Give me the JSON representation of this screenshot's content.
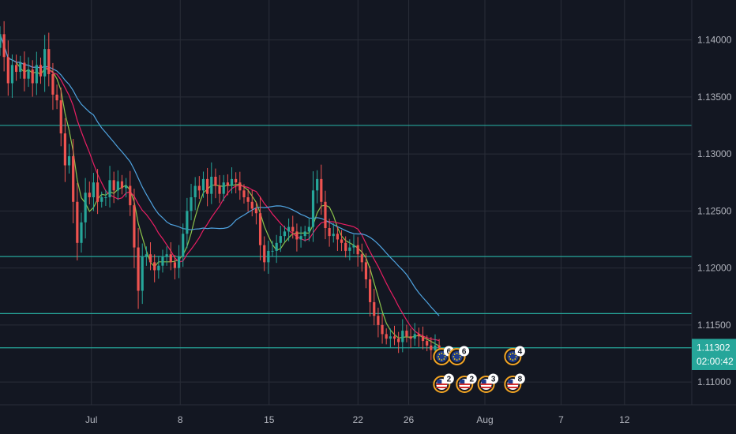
{
  "chart_data": {
    "type": "candlestick",
    "y_ticks": [
      "1.14000",
      "1.13500",
      "1.13000",
      "1.12500",
      "1.12000",
      "1.11500",
      "1.11000"
    ],
    "ylim": [
      1.108,
      1.1435
    ],
    "x_ticks": [
      {
        "label": "Jul",
        "day": 1
      },
      {
        "label": "8",
        "day": 8
      },
      {
        "label": "15",
        "day": 15
      },
      {
        "label": "22",
        "day": 22
      },
      {
        "label": "26",
        "day": 26
      },
      {
        "label": "Aug",
        "day": 32
      },
      {
        "label": "7",
        "day": 38
      },
      {
        "label": "12",
        "day": 43
      }
    ],
    "xlim_days": [
      -6.2,
      48.3
    ],
    "last_price": "1.11302",
    "countdown": "02:00:42",
    "horizontal_levels": [
      1.1325,
      1.121,
      1.116,
      1.113
    ],
    "closes": [
      1.1405,
      1.1385,
      1.1362,
      1.1378,
      1.1372,
      1.138,
      1.1366,
      1.1374,
      1.1362,
      1.1378,
      1.1368,
      1.1392,
      1.137,
      1.1352,
      1.1347,
      1.1318,
      1.129,
      1.1298,
      1.1258,
      1.1222,
      1.124,
      1.1266,
      1.1262,
      1.1275,
      1.1258,
      1.1262,
      1.1262,
      1.1277,
      1.1268,
      1.1276,
      1.127,
      1.1272,
      1.1255,
      1.1218,
      1.118,
      1.121,
      1.1212,
      1.1205,
      1.1198,
      1.1202,
      1.121,
      1.1212,
      1.1205,
      1.12,
      1.121,
      1.123,
      1.125,
      1.1262,
      1.1272,
      1.1268,
      1.1278,
      1.1265,
      1.128,
      1.1272,
      1.1265,
      1.1275,
      1.1272,
      1.1278,
      1.1275,
      1.1268,
      1.1262,
      1.1258,
      1.1252,
      1.1248,
      1.122,
      1.1205,
      1.1215,
      1.1215,
      1.1222,
      1.1228,
      1.1232,
      1.1236,
      1.1232,
      1.1225,
      1.1228,
      1.1232,
      1.1236,
      1.1268,
      1.1278,
      1.1258,
      1.1235,
      1.1228,
      1.123,
      1.1225,
      1.1222,
      1.1215,
      1.1218,
      1.122,
      1.1212,
      1.1205,
      1.119,
      1.117,
      1.1158,
      1.115,
      1.1142,
      1.1138,
      1.114,
      1.1138,
      1.1135,
      1.1145,
      1.114,
      1.1138,
      1.1142,
      1.114,
      1.1136,
      1.1132,
      1.1128,
      1.1132,
      1.113
    ],
    "ma_lines": [
      {
        "color": "#8bc34a",
        "period": 5
      },
      {
        "color": "#e91e63",
        "period": 12
      },
      {
        "color": "#4fa3e0",
        "period": 24
      }
    ],
    "up_color": "#26a69a",
    "down_color": "#ef5350"
  },
  "events": {
    "eu_row": [
      {
        "count": "6",
        "day": 28.6
      },
      {
        "count": "6",
        "day": 29.8
      },
      {
        "count": "4",
        "day": 34.2
      }
    ],
    "us_row": [
      {
        "count": "2",
        "day": 28.6
      },
      {
        "count": "2",
        "day": 30.4
      },
      {
        "count": "3",
        "day": 32.1
      },
      {
        "count": "8",
        "day": 34.2
      }
    ]
  }
}
